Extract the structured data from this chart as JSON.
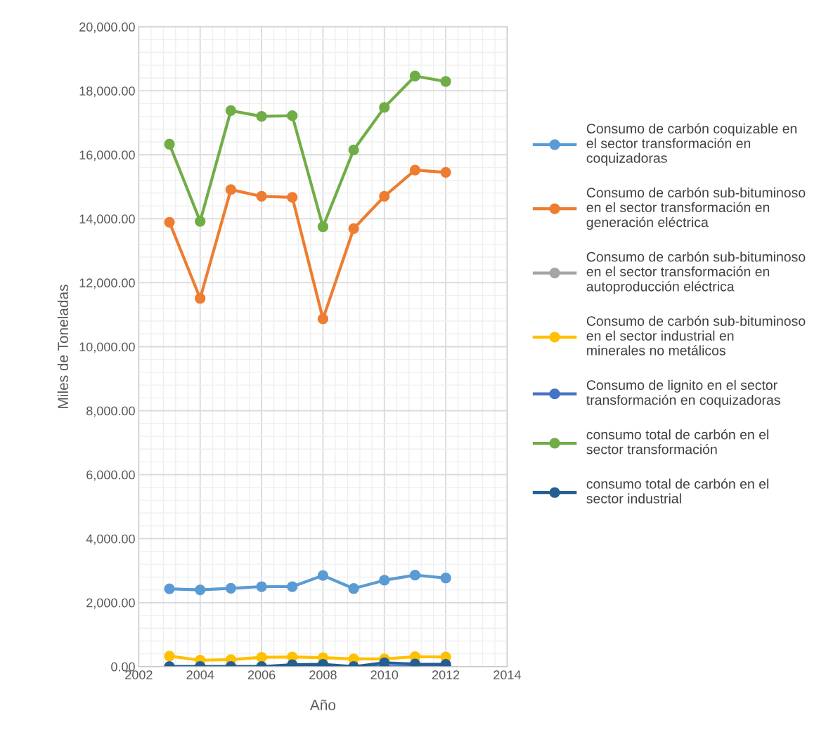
{
  "chart_data": {
    "type": "line",
    "xlabel": "Año",
    "ylabel": "Miles de Toneladas",
    "x": [
      2003,
      2004,
      2005,
      2006,
      2007,
      2008,
      2009,
      2010,
      2011,
      2012
    ],
    "series": [
      {
        "name": "Consumo de carbón coquizable en el sector transformación en coquizadoras",
        "color": "#5b9bd5",
        "values": [
          2430,
          2400,
          2450,
          2500,
          2500,
          2850,
          2440,
          2700,
          2860,
          2770
        ]
      },
      {
        "name": "Consumo de carbón sub-bituminoso en el sector transformación en generación eléctrica",
        "color": "#ed7d31",
        "values": [
          13890,
          11510,
          14910,
          14700,
          14670,
          10870,
          13690,
          14700,
          15520,
          15450
        ]
      },
      {
        "name": "Consumo de carbón sub-bituminoso en el sector transformación en autoproducción eléctrica",
        "color": "#a5a5a5",
        "values": [
          null,
          null,
          null,
          null,
          null,
          null,
          null,
          null,
          null,
          null
        ]
      },
      {
        "name": "Consumo de carbón sub-bituminoso en el sector industrial en minerales no metálicos",
        "color": "#ffc000",
        "values": [
          330,
          200,
          220,
          290,
          300,
          280,
          240,
          240,
          310,
          300
        ]
      },
      {
        "name": "Consumo de lignito en el sector transformación en coquizadoras",
        "color": "#4472c4",
        "values": [
          0,
          0,
          0,
          0,
          0,
          0,
          0,
          0,
          0,
          0
        ]
      },
      {
        "name": "consumo total de carbón en el sector transformación",
        "color": "#70ad47",
        "values": [
          16330,
          13920,
          17380,
          17200,
          17220,
          13750,
          16150,
          17480,
          18460,
          18290
        ]
      },
      {
        "name": "consumo total de carbón en el sector industrial",
        "color": "#255e91",
        "values": [
          0,
          0,
          0,
          0,
          60,
          70,
          0,
          120,
          80,
          70
        ]
      }
    ],
    "xlim": [
      2002,
      2014
    ],
    "xticks": [
      2002,
      2004,
      2006,
      2008,
      2010,
      2012,
      2014
    ],
    "ylim": [
      0,
      20000
    ],
    "yticks": [
      {
        "value": 0,
        "label": "0.00"
      },
      {
        "value": 2000,
        "label": "2,000.00"
      },
      {
        "value": 4000,
        "label": "4,000.00"
      },
      {
        "value": 6000,
        "label": "6,000.00"
      },
      {
        "value": 8000,
        "label": "8,000.00"
      },
      {
        "value": 10000,
        "label": "10,000.00"
      },
      {
        "value": 12000,
        "label": "12,000.00"
      },
      {
        "value": 14000,
        "label": "14,000.00"
      },
      {
        "value": 16000,
        "label": "16,000.00"
      },
      {
        "value": 18000,
        "label": "18,000.00"
      },
      {
        "value": 20000,
        "label": "20,000.00"
      }
    ],
    "grid": true,
    "legend": "right",
    "marker": "circle",
    "line_style": "solid"
  }
}
